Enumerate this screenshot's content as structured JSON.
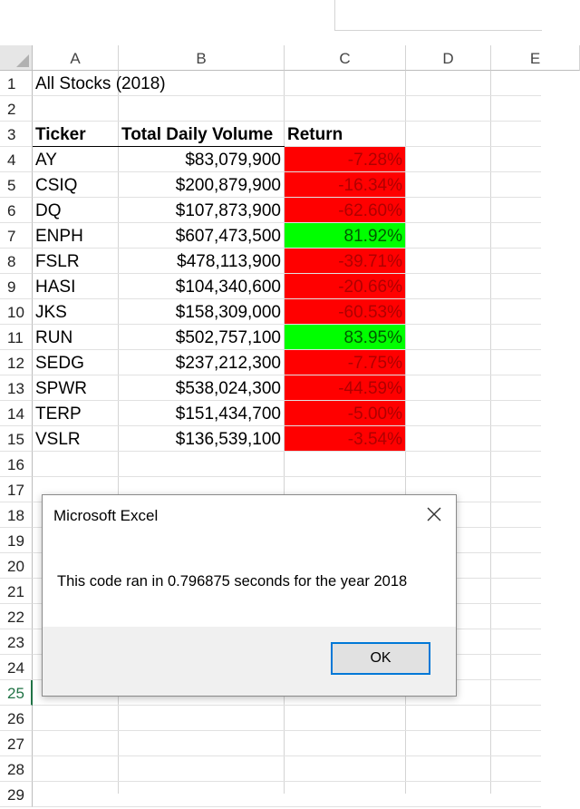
{
  "columns": [
    "A",
    "B",
    "C",
    "D",
    "E"
  ],
  "rows": [
    "1",
    "2",
    "3",
    "4",
    "5",
    "6",
    "7",
    "8",
    "9",
    "10",
    "11",
    "12",
    "13",
    "14",
    "15",
    "16",
    "17",
    "18",
    "19",
    "20",
    "21",
    "22",
    "23",
    "24",
    "25",
    "26",
    "27",
    "28",
    "29"
  ],
  "selected_row": "25",
  "sheet": {
    "title_cell": "All Stocks (2018)",
    "headers": {
      "ticker": "Ticker",
      "volume": "Total Daily Volume",
      "return": "Return"
    },
    "stocks": [
      {
        "ticker": "AY",
        "volume": "$83,079,900",
        "return": "-7.28%",
        "status": "negative"
      },
      {
        "ticker": "CSIQ",
        "volume": "$200,879,900",
        "return": "-16.34%",
        "status": "negative"
      },
      {
        "ticker": "DQ",
        "volume": "$107,873,900",
        "return": "-62.60%",
        "status": "negative"
      },
      {
        "ticker": "ENPH",
        "volume": "$607,473,500",
        "return": "81.92%",
        "status": "positive"
      },
      {
        "ticker": "FSLR",
        "volume": "$478,113,900",
        "return": "-39.71%",
        "status": "negative"
      },
      {
        "ticker": "HASI",
        "volume": "$104,340,600",
        "return": "-20.66%",
        "status": "negative"
      },
      {
        "ticker": "JKS",
        "volume": "$158,309,000",
        "return": "-60.53%",
        "status": "negative"
      },
      {
        "ticker": "RUN",
        "volume": "$502,757,100",
        "return": "83.95%",
        "status": "positive"
      },
      {
        "ticker": "SEDG",
        "volume": "$237,212,300",
        "return": "-7.75%",
        "status": "negative"
      },
      {
        "ticker": "SPWR",
        "volume": "$538,024,300",
        "return": "-44.59%",
        "status": "negative"
      },
      {
        "ticker": "TERP",
        "volume": "$151,434,700",
        "return": "-5.00%",
        "status": "negative"
      },
      {
        "ticker": "VSLR",
        "volume": "$136,539,100",
        "return": "-3.54%",
        "status": "negative"
      }
    ]
  },
  "colors": {
    "negative": "#ff0000",
    "positive": "#00ff00",
    "selection": "#217346",
    "button_focus": "#0078d7"
  },
  "dialog": {
    "title": "Microsoft Excel",
    "message": "This code ran in 0.796875 seconds for the year 2018",
    "ok_label": "OK",
    "close_icon": "close-icon"
  }
}
